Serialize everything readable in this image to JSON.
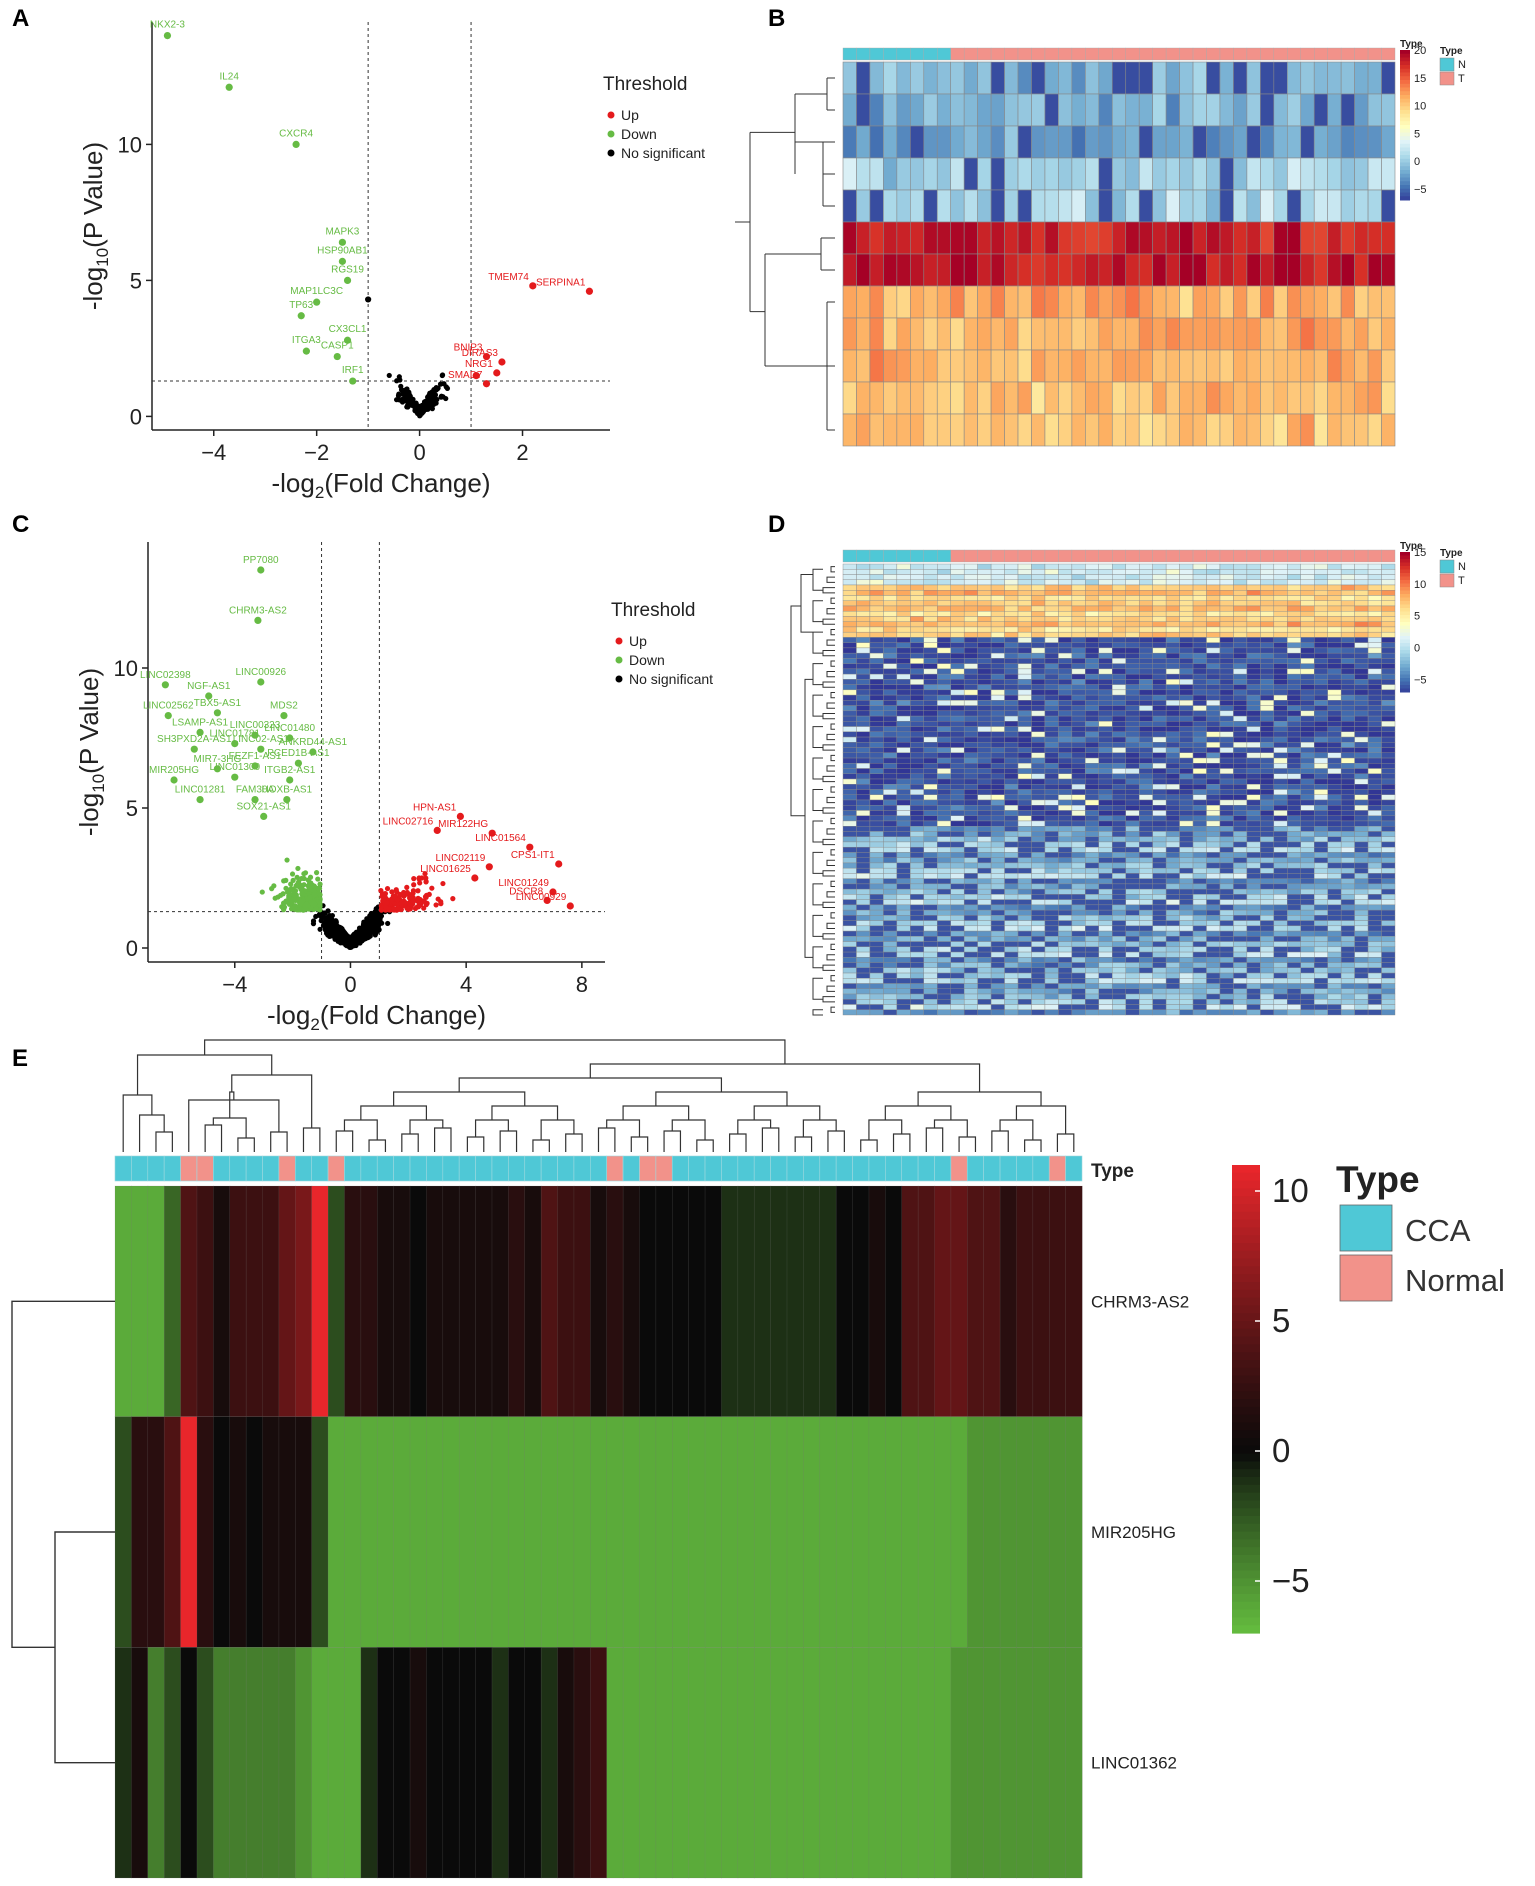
{
  "panel_labels": [
    "A",
    "B",
    "C",
    "D",
    "E"
  ],
  "chart_data": [
    {
      "panel": "A",
      "type": "scatter",
      "xlabel": "-log2(Fold Change)",
      "ylabel": "-log10(P Value)",
      "xlim": [
        -5.2,
        3.7
      ],
      "ylim": [
        -0.5,
        14.5
      ],
      "xticks": [
        -4,
        -2,
        0,
        2
      ],
      "yticks": [
        0,
        5,
        10
      ],
      "fc_threshold": [
        -1,
        1
      ],
      "p_threshold": 1.3,
      "legend": {
        "title": "Threshold",
        "items": [
          "Up",
          "Down",
          "No significant"
        ]
      },
      "colors": {
        "Up": "#e41a1c",
        "Down": "#66bb44",
        "No significant": "#000000"
      },
      "up": [
        {
          "x": 2.2,
          "y": 4.8,
          "label": "TMEM74"
        },
        {
          "x": 3.3,
          "y": 4.6,
          "label": "SERPINA1"
        },
        {
          "x": 1.3,
          "y": 2.2,
          "label": "BNIP3"
        },
        {
          "x": 1.6,
          "y": 2.0,
          "label": "DIRAS3"
        },
        {
          "x": 1.5,
          "y": 1.6,
          "label": "NRG1"
        },
        {
          "x": 1.3,
          "y": 1.2,
          "label": "SMAD7"
        },
        {
          "x": 1.1,
          "y": 1.5,
          "label": ""
        }
      ],
      "down": [
        {
          "x": -4.9,
          "y": 14.0,
          "label": "NKX2-3"
        },
        {
          "x": -3.7,
          "y": 12.1,
          "label": "IL24"
        },
        {
          "x": -2.4,
          "y": 10.0,
          "label": "CXCR4"
        },
        {
          "x": -1.5,
          "y": 6.4,
          "label": "MAPK3"
        },
        {
          "x": -1.5,
          "y": 5.7,
          "label": "HSP90AB1"
        },
        {
          "x": -1.4,
          "y": 5.0,
          "label": "RGS19"
        },
        {
          "x": -2.0,
          "y": 4.2,
          "label": "MAP1LC3C"
        },
        {
          "x": -2.3,
          "y": 3.7,
          "label": "TP63"
        },
        {
          "x": -1.4,
          "y": 2.8,
          "label": "CX3CL1"
        },
        {
          "x": -2.2,
          "y": 2.4,
          "label": "ITGA3"
        },
        {
          "x": -1.6,
          "y": 2.2,
          "label": "CASP1"
        },
        {
          "x": -1.3,
          "y": 1.3,
          "label": "IRF1"
        }
      ],
      "ns_extra": [
        {
          "x": -1.0,
          "y": 4.3,
          "label": ""
        }
      ]
    },
    {
      "panel": "B",
      "type": "heatmap",
      "legend_title": "Type",
      "annotation_title": "Type",
      "groups": [
        "N",
        "T"
      ],
      "group_colors": {
        "N": "#4fc8d6",
        "T": "#f2928a"
      },
      "n_columns": 41,
      "n_N": 8,
      "n_rows": 12,
      "colorbar_ticks": [
        20,
        15,
        10,
        5,
        0,
        -5
      ],
      "colorbar_range": [
        -7,
        20
      ],
      "row_means": [
        -1,
        -1,
        -2,
        1,
        1,
        18,
        19,
        12,
        12,
        12,
        11,
        11
      ]
    },
    {
      "panel": "C",
      "type": "scatter",
      "xlabel": "-log2(Fold Change)",
      "ylabel": "-log10(P Value)",
      "xlim": [
        -7,
        8.8
      ],
      "ylim": [
        -0.5,
        14.5
      ],
      "xticks": [
        -4,
        0,
        4,
        8
      ],
      "yticks": [
        0,
        5,
        10
      ],
      "fc_threshold": [
        -1,
        1
      ],
      "p_threshold": 1.3,
      "legend": {
        "title": "Threshold",
        "items": [
          "Up",
          "Down",
          "No significant"
        ]
      },
      "colors": {
        "Up": "#e41a1c",
        "Down": "#66bb44",
        "No significant": "#000000"
      },
      "up_labeled": [
        {
          "x": 3.8,
          "y": 4.7,
          "label": "HPN-AS1"
        },
        {
          "x": 4.9,
          "y": 4.1,
          "label": "MIR122HG"
        },
        {
          "x": 3.0,
          "y": 4.2,
          "label": "LINC02716"
        },
        {
          "x": 6.2,
          "y": 3.6,
          "label": "LINC01564"
        },
        {
          "x": 4.8,
          "y": 2.9,
          "label": "LINC02119"
        },
        {
          "x": 7.2,
          "y": 3.0,
          "label": "CPS1-IT1"
        },
        {
          "x": 4.3,
          "y": 2.5,
          "label": "LINC01625"
        },
        {
          "x": 7.0,
          "y": 2.0,
          "label": "LINC01249"
        },
        {
          "x": 6.8,
          "y": 1.7,
          "label": "DSCR8"
        },
        {
          "x": 7.6,
          "y": 1.5,
          "label": "LINC00929"
        }
      ],
      "down_labeled": [
        {
          "x": -3.1,
          "y": 13.5,
          "label": "PP7080"
        },
        {
          "x": -3.2,
          "y": 11.7,
          "label": "CHRM3-AS2"
        },
        {
          "x": -6.4,
          "y": 9.4,
          "label": "LINC02398"
        },
        {
          "x": -3.1,
          "y": 9.5,
          "label": "LINC00926"
        },
        {
          "x": -4.9,
          "y": 9.0,
          "label": "NGF-AS1"
        },
        {
          "x": -6.3,
          "y": 8.3,
          "label": "LINC02562"
        },
        {
          "x": -4.6,
          "y": 8.4,
          "label": "TBX5-AS1"
        },
        {
          "x": -2.3,
          "y": 8.3,
          "label": "MDS2"
        },
        {
          "x": -3.3,
          "y": 7.6,
          "label": "LINC00323"
        },
        {
          "x": -2.1,
          "y": 7.5,
          "label": "LINC01480"
        },
        {
          "x": -5.2,
          "y": 7.7,
          "label": "LSAMP-AS1"
        },
        {
          "x": -4.0,
          "y": 7.3,
          "label": "LINC01781"
        },
        {
          "x": -3.1,
          "y": 7.1,
          "label": "LINC02-AS1"
        },
        {
          "x": -1.3,
          "y": 7.0,
          "label": "ANKRD44-AS1"
        },
        {
          "x": -5.4,
          "y": 7.1,
          "label": "SH3PXD2A-AS1"
        },
        {
          "x": -3.3,
          "y": 6.5,
          "label": "FEZF1-AS1"
        },
        {
          "x": -1.8,
          "y": 6.6,
          "label": "PCED1B-AS1"
        },
        {
          "x": -4.6,
          "y": 6.4,
          "label": "MIR7-3HG"
        },
        {
          "x": -6.1,
          "y": 6.0,
          "label": "MIR205HG"
        },
        {
          "x": -4.0,
          "y": 6.1,
          "label": "LINC01300"
        },
        {
          "x": -2.1,
          "y": 6.0,
          "label": "ITGB2-AS1"
        },
        {
          "x": -2.2,
          "y": 5.3,
          "label": "HOXB-AS1"
        },
        {
          "x": -5.2,
          "y": 5.3,
          "label": "LINC01281"
        },
        {
          "x": -3.3,
          "y": 5.3,
          "label": "FAM30A"
        },
        {
          "x": -3.0,
          "y": 4.7,
          "label": "SOX21-AS1"
        }
      ]
    },
    {
      "panel": "D",
      "type": "heatmap",
      "legend_title": "Type",
      "annotation_title": "Type",
      "groups": [
        "N",
        "T"
      ],
      "group_colors": {
        "N": "#4fc8d6",
        "T": "#f2928a"
      },
      "n_columns": 41,
      "n_N": 8,
      "n_rows": 86,
      "colorbar_ticks": [
        15,
        10,
        5,
        0,
        -5
      ],
      "colorbar_range": [
        -7,
        15
      ]
    },
    {
      "panel": "E",
      "type": "heatmap",
      "legend_title": "Type",
      "annotation_label": "Type",
      "groups": [
        "CCA",
        "Normal"
      ],
      "group_colors": {
        "CCA": "#4fc8d6",
        "Normal": "#f2928a"
      },
      "rows": [
        "CHRM3-AS2",
        "MIR205HG",
        "LINC01362"
      ],
      "colorbar_ticks": [
        10,
        5,
        0,
        -5
      ],
      "colorbar_range": [
        -7,
        11
      ],
      "column_types": "CCCCNNCCCCNCCNCCCCCCCCCCCCCCCCNCNNCCCCCCCCCCCCCCCCCNCCCCCNC",
      "values": [
        [
          -6,
          -6,
          -6,
          -3,
          4,
          3,
          1,
          3,
          3,
          3,
          5,
          6,
          11,
          -2,
          2,
          2,
          1,
          1,
          0,
          1,
          1,
          1,
          1,
          1,
          2,
          1,
          4,
          3,
          3,
          1,
          2,
          1,
          0,
          0,
          0,
          0,
          0,
          -1,
          -1,
          -1,
          -1,
          -1,
          -1,
          -1,
          0,
          0,
          1,
          0,
          4,
          4,
          5,
          5,
          4,
          4,
          2,
          3,
          3,
          3,
          3
        ],
        [
          -2,
          2,
          2,
          4,
          11,
          2,
          0,
          1,
          0,
          1,
          1,
          1,
          -2,
          -6,
          -6,
          -6,
          -6,
          -6,
          -6,
          -6,
          -6,
          -6,
          -6,
          -6,
          -6,
          -6,
          -6,
          -6,
          -6,
          -6,
          -6,
          -6,
          -6,
          -6,
          -6,
          -6,
          -6,
          -6,
          -6,
          -6,
          -6,
          -6,
          -6,
          -6,
          -6,
          -6,
          -6,
          -6,
          -6,
          -6,
          -6,
          -6,
          -5,
          -5,
          -5,
          -5,
          -5,
          -5,
          -5
        ],
        [
          -1,
          1,
          -4,
          -2,
          0,
          -2,
          -4,
          -4,
          -4,
          -4,
          -4,
          -5,
          -6,
          -6,
          -6,
          -1,
          0,
          0,
          1,
          0,
          0,
          0,
          0,
          -1,
          0,
          0,
          -1,
          1,
          2,
          3,
          -6,
          -6,
          -6,
          -6,
          -6,
          -6,
          -6,
          -6,
          -6,
          -6,
          -6,
          -6,
          -6,
          -6,
          -6,
          -6,
          -6,
          -6,
          -6,
          -6,
          -6,
          -5,
          -5,
          -5,
          -5,
          -5,
          -5,
          -5,
          -5
        ]
      ]
    }
  ]
}
